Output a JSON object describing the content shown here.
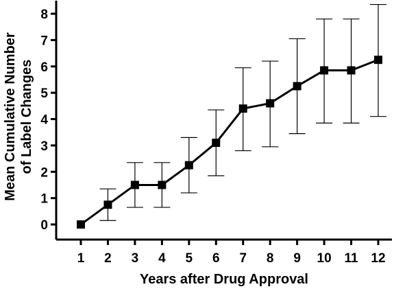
{
  "chart_data": {
    "type": "line",
    "title": "",
    "xlabel": "Years after Drug Approval",
    "ylabel_lines": [
      "Mean Cumulative Number",
      "of Label Changes"
    ],
    "x": [
      1,
      2,
      3,
      4,
      5,
      6,
      7,
      8,
      9,
      10,
      11,
      12
    ],
    "x_ticks": [
      "1",
      "2",
      "3",
      "4",
      "5",
      "6",
      "7",
      "8",
      "9",
      "10",
      "11",
      "12"
    ],
    "y_ticks": [
      "0",
      "1",
      "2",
      "3",
      "4",
      "5",
      "6",
      "7",
      "8"
    ],
    "ylim": [
      0,
      8.5
    ],
    "xlim": [
      0.5,
      12.5
    ],
    "grid": false,
    "series": [
      {
        "values": [
          0,
          0.75,
          1.5,
          1.5,
          2.25,
          3.1,
          4.4,
          4.6,
          5.25,
          5.85,
          5.85,
          6.25
        ],
        "error_upper": [
          0,
          1.35,
          2.35,
          2.35,
          3.3,
          4.35,
          5.95,
          6.2,
          7.05,
          7.8,
          7.8,
          8.35
        ],
        "error_lower": [
          0,
          0.15,
          0.65,
          0.65,
          1.2,
          1.85,
          2.8,
          2.95,
          3.45,
          3.85,
          3.85,
          4.1
        ],
        "marker": "square",
        "color": "#000000"
      }
    ]
  }
}
